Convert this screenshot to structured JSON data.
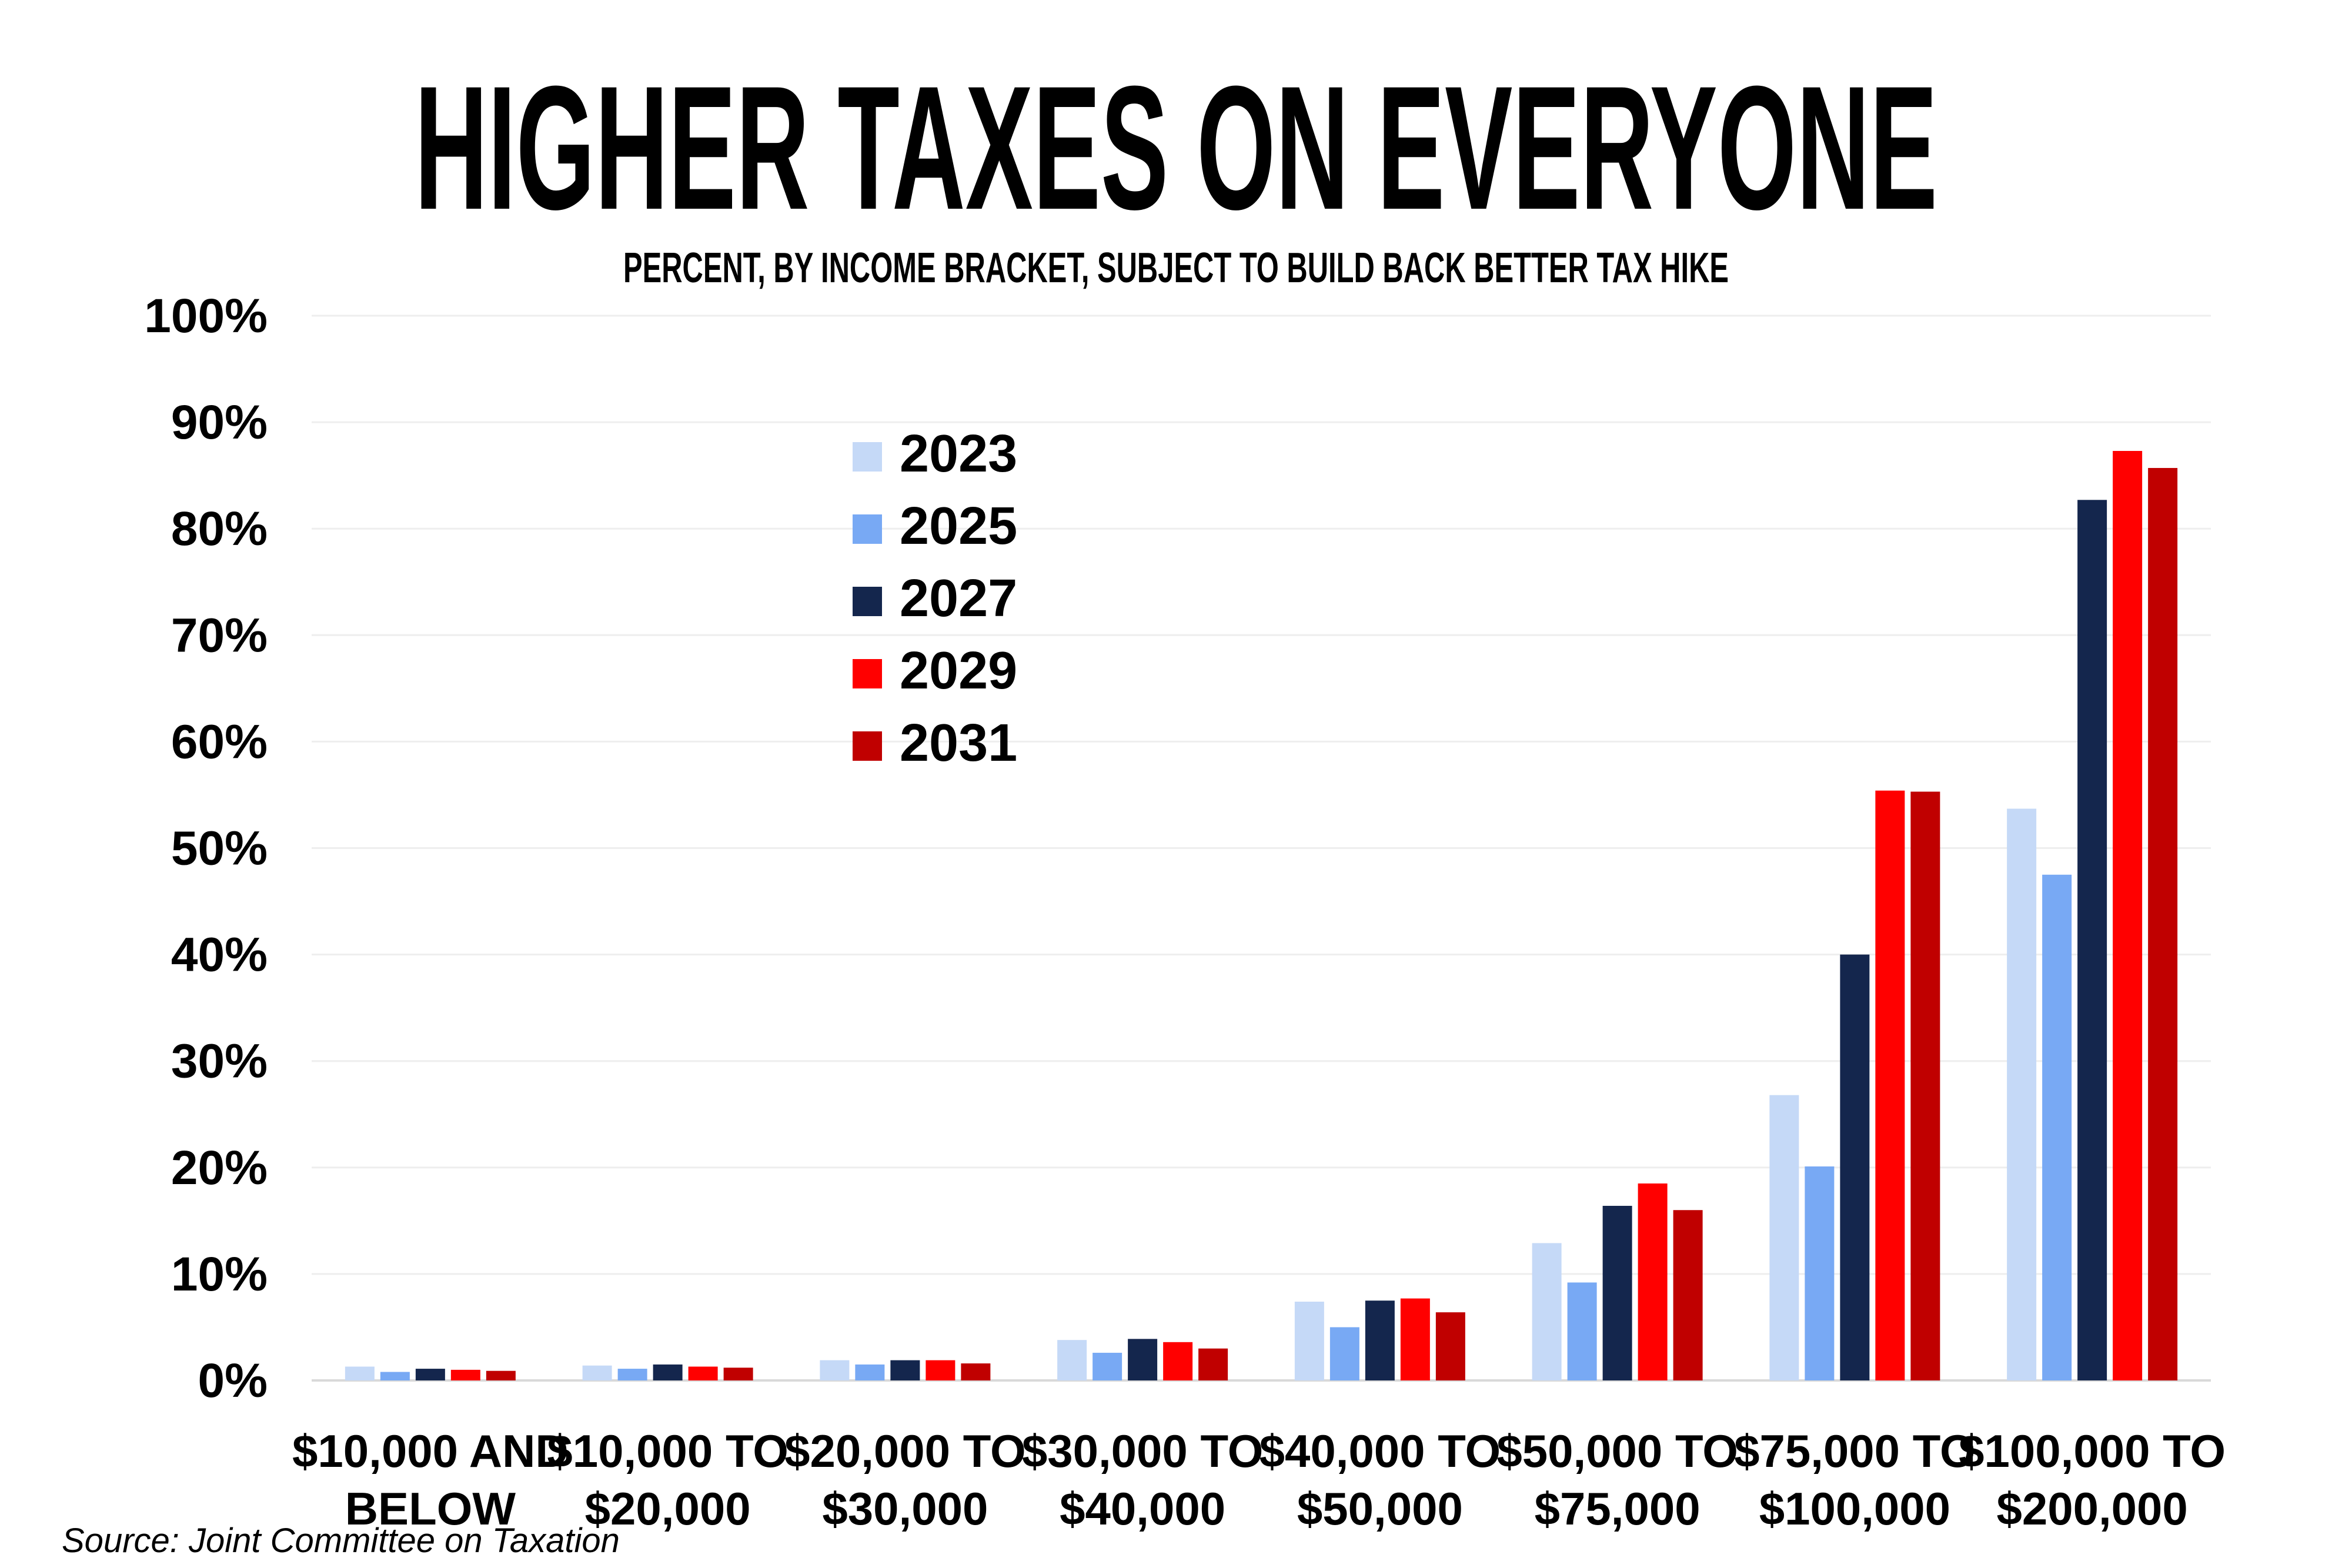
{
  "chart_data": {
    "type": "bar",
    "title": "HIGHER TAXES ON EVERYONE",
    "subtitle": "PERCENT, BY INCOME BRACKET, SUBJECT TO BUILD BACK BETTER TAX HIKE",
    "categories": [
      [
        "$10,000 AND",
        "BELOW"
      ],
      [
        "$10,000 TO",
        "$20,000"
      ],
      [
        "$20,000 TO",
        "$30,000"
      ],
      [
        "$30,000 TO",
        "$40,000"
      ],
      [
        "$40,000 TO",
        "$50,000"
      ],
      [
        "$50,000 TO",
        "$75,000"
      ],
      [
        "$75,000 TO",
        "$100,000"
      ],
      [
        "$100,000 TO",
        "$200,000"
      ]
    ],
    "series": [
      {
        "name": "2023",
        "color": "#c5d9f7",
        "values": [
          1.3,
          1.4,
          1.9,
          3.8,
          7.4,
          12.9,
          26.8,
          53.7
        ]
      },
      {
        "name": "2025",
        "color": "#78a9f4",
        "values": [
          0.8,
          1.1,
          1.5,
          2.6,
          5.0,
          9.2,
          20.1,
          47.5
        ]
      },
      {
        "name": "2027",
        "color": "#14264d",
        "values": [
          1.1,
          1.5,
          1.9,
          3.9,
          7.5,
          16.4,
          40.0,
          82.7
        ]
      },
      {
        "name": "2029",
        "color": "#ff0000",
        "values": [
          1.0,
          1.3,
          1.9,
          3.6,
          7.7,
          18.5,
          55.4,
          87.3
        ]
      },
      {
        "name": "2031",
        "color": "#c00000",
        "values": [
          0.9,
          1.2,
          1.6,
          3.0,
          6.4,
          16.0,
          55.3,
          85.7
        ]
      }
    ],
    "ylim": [
      0,
      100
    ],
    "yticks": [
      "0%",
      "10%",
      "20%",
      "30%",
      "40%",
      "50%",
      "60%",
      "70%",
      "80%",
      "90%",
      "100%"
    ],
    "grid": true,
    "legend_position": "upper-left-center"
  },
  "source": "Source: Joint Committee on Taxation"
}
